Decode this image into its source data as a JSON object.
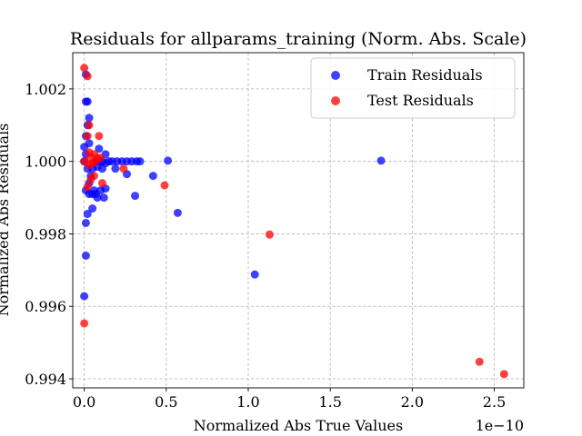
{
  "chart_data": {
    "type": "scatter",
    "title": "Residuals for allparams_training (Norm. Abs. Scale)",
    "xlabel": "Normalized Abs True Values",
    "ylabel": "Normalized Abs Residuals",
    "x_offset_label": "1e−10",
    "xlim": [
      -0.07,
      2.68
    ],
    "ylim": [
      0.99375,
      1.003
    ],
    "x_ticks": [
      0.0,
      0.5,
      1.0,
      1.5,
      2.0,
      2.5
    ],
    "x_tick_labels": [
      "0.0",
      "0.5",
      "1.0",
      "1.5",
      "2.0",
      "2.5"
    ],
    "y_ticks": [
      0.994,
      0.996,
      0.998,
      1.0,
      1.002
    ],
    "y_tick_labels": [
      "0.994",
      "0.996",
      "0.998",
      "1.000",
      "1.002"
    ],
    "grid": true,
    "legend_position": "top-right",
    "series": [
      {
        "name": "Train Residuals",
        "color": "#0000ff",
        "points": [
          [
            0.0,
            1.0004
          ],
          [
            0.01,
            1.0024
          ],
          [
            0.02,
            1.00165
          ],
          [
            0.01,
            1.00165
          ],
          [
            0.02,
            1.001
          ],
          [
            0.03,
            1.0012
          ],
          [
            0.01,
            1.0007
          ],
          [
            0.03,
            1.0005
          ],
          [
            0.01,
            1.0002
          ],
          [
            0.0,
            1.0
          ],
          [
            0.02,
            0.9998
          ],
          [
            0.05,
            0.9998
          ],
          [
            0.04,
            0.9996
          ],
          [
            0.03,
            0.9994
          ],
          [
            0.06,
            0.9992
          ],
          [
            0.01,
            0.9992
          ],
          [
            0.03,
            0.9991
          ],
          [
            0.05,
            0.9991
          ],
          [
            0.07,
            0.9991
          ],
          [
            0.08,
            0.999
          ],
          [
            0.1,
            0.9992
          ],
          [
            0.12,
            0.999
          ],
          [
            0.13,
            0.99925
          ],
          [
            0.05,
            0.9987
          ],
          [
            0.02,
            0.99855
          ],
          [
            0.01,
            0.9983
          ],
          [
            0.01,
            0.9974
          ],
          [
            0.0,
            0.99628
          ],
          [
            0.07,
            1.0
          ],
          [
            0.09,
            1.0
          ],
          [
            0.11,
            1.0
          ],
          [
            0.13,
            0.99995
          ],
          [
            0.15,
            1.0
          ],
          [
            0.17,
            1.0
          ],
          [
            0.2,
            1.0
          ],
          [
            0.23,
            1.0
          ],
          [
            0.26,
            1.0
          ],
          [
            0.29,
            1.0
          ],
          [
            0.32,
            1.0
          ],
          [
            0.34,
            1.0
          ],
          [
            0.09,
            1.00035
          ],
          [
            0.08,
            0.99985
          ],
          [
            0.11,
            0.9998
          ],
          [
            0.13,
            1.0002
          ],
          [
            0.19,
            0.9998
          ],
          [
            0.26,
            0.99965
          ],
          [
            0.31,
            0.99905
          ],
          [
            0.42,
            0.9996
          ],
          [
            0.51,
            1.00002
          ],
          [
            0.57,
            0.99858
          ],
          [
            1.04,
            0.99688
          ],
          [
            1.81,
            1.00002
          ]
        ]
      },
      {
        "name": "Test Residuals",
        "color": "#ff0000",
        "points": [
          [
            0.0,
            1.00258
          ],
          [
            0.02,
            1.00235
          ],
          [
            0.03,
            1.001
          ],
          [
            0.02,
            1.0007
          ],
          [
            0.09,
            1.0007
          ],
          [
            0.03,
            1.00025
          ],
          [
            0.06,
            1.0002
          ],
          [
            0.04,
            1.0001
          ],
          [
            0.07,
            1.0
          ],
          [
            0.08,
            1.0001
          ],
          [
            0.1,
            1.0001
          ],
          [
            0.05,
            0.99995
          ],
          [
            0.03,
            0.9999
          ],
          [
            0.06,
            0.9996
          ],
          [
            0.04,
            0.9995
          ],
          [
            0.02,
            0.9993
          ],
          [
            0.11,
            0.9994
          ],
          [
            0.24,
            0.9998
          ],
          [
            0.0,
            1.0
          ],
          [
            0.49,
            0.99934
          ],
          [
            0.0,
            0.99553
          ],
          [
            1.13,
            0.99798
          ],
          [
            2.41,
            0.99447
          ],
          [
            2.56,
            0.99413
          ]
        ]
      }
    ]
  }
}
